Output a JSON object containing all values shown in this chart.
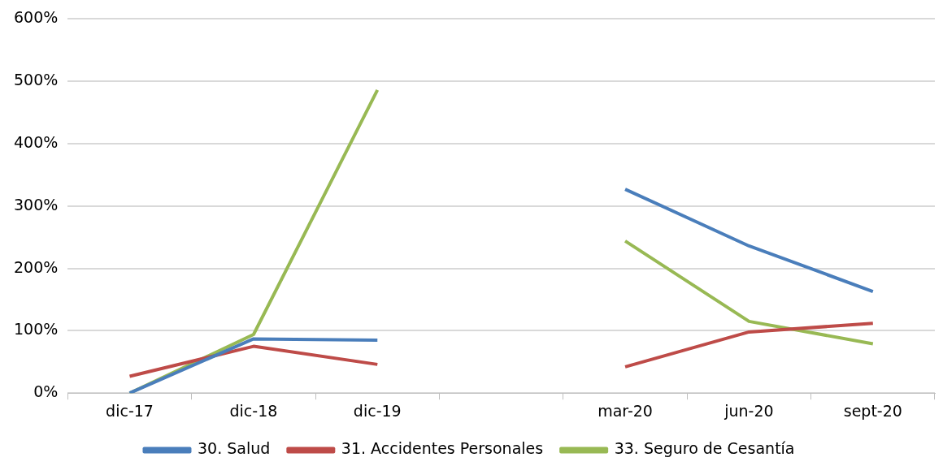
{
  "chart_data": {
    "type": "line",
    "categories": [
      "dic-17",
      "dic-18",
      "dic-19",
      null,
      "mar-20",
      "jun-20",
      "sept-20"
    ],
    "series": [
      {
        "name": "30. Salud",
        "color": "#4a7ebb",
        "values": [
          0,
          87,
          85,
          null,
          327,
          236,
          163
        ]
      },
      {
        "name": "31. Accidentes Personales",
        "color": "#be4b48",
        "values": [
          27,
          75,
          46,
          null,
          42,
          98,
          112
        ]
      },
      {
        "name": "33. Seguro de Cesantía",
        "color": "#98b954",
        "values": [
          0,
          94,
          486,
          null,
          244,
          115,
          79
        ]
      }
    ],
    "ylim": [
      0,
      600
    ],
    "yticks": [
      {
        "value": 0,
        "label": "0%"
      },
      {
        "value": 100,
        "label": "100%"
      },
      {
        "value": 200,
        "label": "200%"
      },
      {
        "value": 300,
        "label": "300%"
      },
      {
        "value": 400,
        "label": "400%"
      },
      {
        "value": 500,
        "label": "500%"
      },
      {
        "value": 600,
        "label": "600%"
      }
    ],
    "grid": "y",
    "legend": "bottom",
    "marker": "none",
    "line_style": "solid"
  }
}
